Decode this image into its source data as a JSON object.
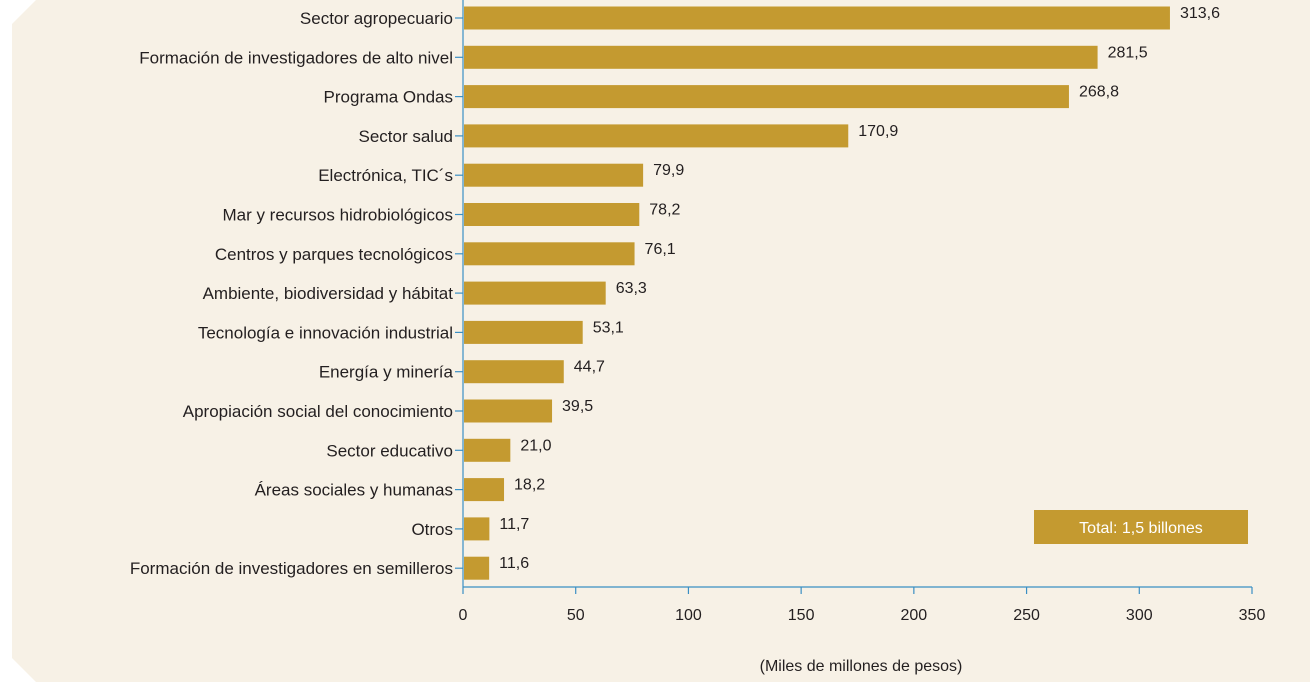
{
  "chart_data": {
    "type": "bar",
    "orientation": "horizontal",
    "categories": [
      "Sector agropecuario",
      "Formación de investigadores de alto nivel",
      "Programa Ondas",
      "Sector salud",
      "Electrónica, TIC´s",
      "Mar y recursos hidrobiológicos",
      "Centros y parques tecnológicos",
      "Ambiente, biodiversidad y hábitat",
      "Tecnología e innovación industrial",
      "Energía y minería",
      "Apropiación social del conocimiento",
      "Sector educativo",
      "Áreas sociales y humanas",
      "Otros",
      "Formación de investigadores en semilleros"
    ],
    "values": [
      313.6,
      281.5,
      268.8,
      170.9,
      79.9,
      78.2,
      76.1,
      63.3,
      53.1,
      44.7,
      39.5,
      21.0,
      18.2,
      11.7,
      11.6
    ],
    "value_labels": [
      "313,6",
      "281,5",
      "268,8",
      "170,9",
      "79,9",
      "78,2",
      "76,1",
      "63,3",
      "53,1",
      "44,7",
      "39,5",
      "21,0",
      "18,2",
      "11,7",
      "11,6"
    ],
    "xlabel": "(Miles de millones de pesos)",
    "xlim": [
      0,
      350
    ],
    "xticks": [
      0,
      50,
      100,
      150,
      200,
      250,
      300,
      350
    ],
    "grid": false,
    "annotation": "Total: 1,5 billones"
  },
  "colors": {
    "bar": "#c49a30",
    "panel": "#f7f1e6",
    "axis": "#3a8fc4",
    "text": "#231f20"
  }
}
